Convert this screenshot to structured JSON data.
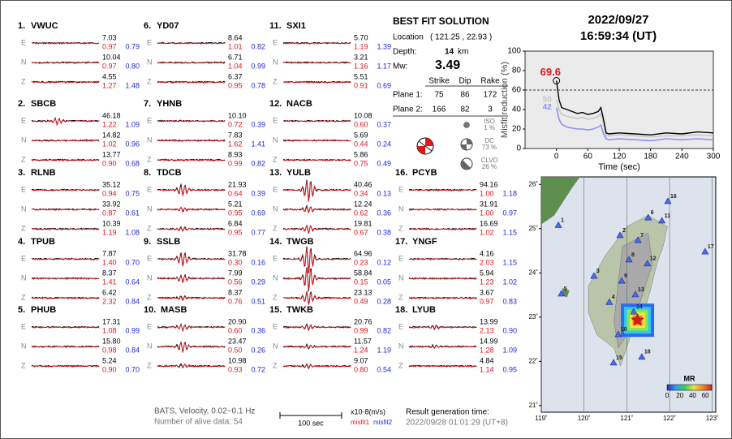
{
  "header": {
    "date": "2022/09/27",
    "time": "16:59:34  (UT)"
  },
  "components": [
    "E",
    "N",
    "Z"
  ],
  "stations": [
    {
      "id": "1.",
      "name": "VWUC",
      "rows": [
        [
          "7.03",
          "0.97",
          "0.79"
        ],
        [
          "10.04",
          "0.97",
          "0.80"
        ],
        [
          "4.55",
          "1.27",
          "1.48"
        ]
      ]
    },
    {
      "id": "2.",
      "name": "SBCB",
      "rows": [
        [
          "46.18",
          "1.22",
          "1.09"
        ],
        [
          "14.82",
          "1.02",
          "0.96"
        ],
        [
          "13.77",
          "0.90",
          "0.68"
        ]
      ]
    },
    {
      "id": "3.",
      "name": "RLNB",
      "rows": [
        [
          "35.12",
          "0.94",
          "0.75"
        ],
        [
          "33.92",
          "0.87",
          "0.61"
        ],
        [
          "10.39",
          "1.19",
          "1.08"
        ]
      ]
    },
    {
      "id": "4.",
      "name": "TPUB",
      "rows": [
        [
          "7.87",
          "1.40",
          "0.70"
        ],
        [
          "8.37",
          "1.41",
          "0.64"
        ],
        [
          "6.42",
          "2.32",
          "0.84"
        ]
      ]
    },
    {
      "id": "5.",
      "name": "PHUB",
      "rows": [
        [
          "17.31",
          "1.08",
          "0.99"
        ],
        [
          "15.80",
          "0.98",
          "0.84"
        ],
        [
          "5.24",
          "0.90",
          "0.70"
        ]
      ]
    },
    {
      "id": "6.",
      "name": "YD07",
      "rows": [
        [
          "8.64",
          "1.01",
          "0.82"
        ],
        [
          "6.71",
          "1.04",
          "0.99"
        ],
        [
          "6.37",
          "0.95",
          "0.78"
        ]
      ]
    },
    {
      "id": "7.",
      "name": "YHNB",
      "rows": [
        [
          "10.10",
          "0.72",
          "0.39"
        ],
        [
          "7.83",
          "1.62",
          "1.41"
        ],
        [
          "8.93",
          "0.99",
          "0.82"
        ]
      ]
    },
    {
      "id": "8.",
      "name": "TDCB",
      "rows": [
        [
          "21.93",
          "0.64",
          "0.39"
        ],
        [
          "5.21",
          "0.95",
          "0.69"
        ],
        [
          "6.84",
          "0.95",
          "0.77"
        ]
      ]
    },
    {
      "id": "9.",
      "name": "SSLB",
      "rows": [
        [
          "31.78",
          "0.30",
          "0.16"
        ],
        [
          "7.99",
          "0.56",
          "0.29"
        ],
        [
          "8.37",
          "0.76",
          "0.51"
        ]
      ]
    },
    {
      "id": "10.",
      "name": "MASB",
      "rows": [
        [
          "20.90",
          "0.60",
          "0.36"
        ],
        [
          "23.47",
          "0.50",
          "0.26"
        ],
        [
          "10.98",
          "0.93",
          "0.72"
        ]
      ]
    },
    {
      "id": "11.",
      "name": "SXI1",
      "rows": [
        [
          "5.70",
          "1.19",
          "1.39"
        ],
        [
          "3.21",
          "1.16",
          "1.17"
        ],
        [
          "5.51",
          "0.91",
          "0.69"
        ]
      ]
    },
    {
      "id": "12.",
      "name": "NACB",
      "rows": [
        [
          "10.08",
          "0.60",
          "0.37"
        ],
        [
          "5.69",
          "0.44",
          "0.24"
        ],
        [
          "5.86",
          "0.75",
          "0.49"
        ]
      ]
    },
    {
      "id": "13.",
      "name": "YULB",
      "rows": [
        [
          "40.46",
          "0.34",
          "0.13"
        ],
        [
          "12.24",
          "0.62",
          "0.36"
        ],
        [
          "19.81",
          "0.67",
          "0.38"
        ]
      ]
    },
    {
      "id": "14.",
      "name": "TWGB",
      "rows": [
        [
          "64.96",
          "0.23",
          "0.12"
        ],
        [
          "58.84",
          "0.15",
          "0.05"
        ],
        [
          "23.13",
          "0.49",
          "0.28"
        ]
      ]
    },
    {
      "id": "15.",
      "name": "TWKB",
      "rows": [
        [
          "20.76",
          "0.99",
          "0.82"
        ],
        [
          "11.57",
          "1.24",
          "1.19"
        ],
        [
          "9.07",
          "0.80",
          "0.54"
        ]
      ]
    },
    {
      "id": "16.",
      "name": "PCYB",
      "rows": [
        [
          "94.16",
          "1.00",
          "1.18"
        ],
        [
          "31.91",
          "1.00",
          "0.97"
        ],
        [
          "16.69",
          "1.02",
          "1.15"
        ]
      ]
    },
    {
      "id": "17.",
      "name": "YNGF",
      "rows": [
        [
          "4.16",
          "2.03",
          "1.15"
        ],
        [
          "5.94",
          "1.23",
          "1.02"
        ],
        [
          "3.67",
          "0.97",
          "0.83"
        ]
      ]
    },
    {
      "id": "18.",
      "name": "LYUB",
      "rows": [
        [
          "13.99",
          "2.13",
          "0.90"
        ],
        [
          "14.99",
          "1.28",
          "1.09"
        ],
        [
          "4.84",
          "1.14",
          "0.95"
        ]
      ]
    }
  ],
  "solution": {
    "title": "BEST FIT SOLUTION",
    "location_label": "Location",
    "location": "( 121.25 , 22.93 )",
    "depth_label": "Depth:",
    "depth": "14",
    "depth_unit": "km",
    "mw_label": "Mw:",
    "mw": "3.49",
    "columns": [
      "Strike",
      "Dip",
      "Rake"
    ],
    "planes": [
      {
        "label": "Plane 1:",
        "values": [
          "75",
          "86",
          "172"
        ]
      },
      {
        "label": "Plane 2:",
        "values": [
          "166",
          "82",
          "3"
        ]
      }
    ],
    "parts": [
      {
        "label": "ISO",
        "value": "1 %"
      },
      {
        "label": "DC",
        "value": "73 %"
      },
      {
        "label": "CLVD",
        "value": "26 %"
      }
    ]
  },
  "chart_data": {
    "type": "line",
    "ylabel": "Misfit reduction (%)",
    "xlabel": "Time (sec)",
    "x": [
      0,
      5,
      10,
      20,
      30,
      40,
      50,
      60,
      70,
      80,
      85,
      90,
      95,
      100,
      120,
      150,
      180,
      210,
      240,
      270,
      300
    ],
    "series": [
      {
        "color": "#c8c8c8",
        "values": [
          50,
          40,
          35,
          33,
          32,
          31,
          32,
          30,
          31,
          33,
          36,
          25,
          13,
          13,
          14,
          13,
          12,
          13,
          13,
          14,
          13
        ]
      },
      {
        "color": "#8f8ff5",
        "values": [
          42,
          30,
          25,
          22,
          21,
          20,
          20,
          19,
          20,
          22,
          24,
          15,
          10,
          9,
          10,
          9,
          8,
          10,
          9,
          10,
          9
        ]
      },
      {
        "color": "#000000",
        "values": [
          69.6,
          50,
          42,
          40,
          38,
          36,
          37,
          35,
          36,
          38,
          42,
          30,
          16,
          15,
          16,
          15,
          14,
          16,
          15,
          17,
          16
        ]
      }
    ],
    "annotations": [
      {
        "text": "50",
        "series": 0
      },
      {
        "text": "42",
        "series": 1
      },
      {
        "text": "69.6",
        "series": 2
      }
    ],
    "hline": 60,
    "xlim": [
      -60,
      300
    ],
    "ylim": [
      0,
      100
    ],
    "xticks": [
      0,
      60,
      120,
      180,
      240,
      300
    ],
    "yticks": [
      0,
      20,
      40,
      60,
      80,
      100
    ]
  },
  "map": {
    "lonlim": [
      119,
      123.08
    ],
    "latlim": [
      20.85,
      26.17
    ],
    "lonticks": [
      {
        "value": 119,
        "label": "119˚"
      },
      {
        "value": 120,
        "label": "120˚"
      },
      {
        "value": 121,
        "label": "121˚"
      },
      {
        "value": 122,
        "label": "122˚"
      },
      {
        "value": 123,
        "label": "123˚"
      }
    ],
    "latticks": [
      {
        "value": 21,
        "label": "21˚"
      },
      {
        "value": 22,
        "label": "22˚"
      },
      {
        "value": 23,
        "label": "23˚"
      },
      {
        "value": 24,
        "label": "24˚"
      },
      {
        "value": 25,
        "label": "25˚"
      },
      {
        "value": 26,
        "label": "26˚"
      }
    ],
    "epicenter": {
      "lon": 121.25,
      "lat": 22.93
    },
    "stations": [
      {
        "label": "1",
        "lon": 119.4,
        "lat": 25.08
      },
      {
        "label": "2",
        "lon": 120.84,
        "lat": 24.85
      },
      {
        "label": "3",
        "lon": 120.23,
        "lat": 23.93
      },
      {
        "label": "4",
        "lon": 120.59,
        "lat": 23.34
      },
      {
        "label": "5",
        "lon": 119.47,
        "lat": 23.53
      },
      {
        "label": "6",
        "lon": 121.5,
        "lat": 25.25
      },
      {
        "label": "7",
        "lon": 121.26,
        "lat": 24.74
      },
      {
        "label": "8",
        "lon": 121.05,
        "lat": 24.3
      },
      {
        "label": "9",
        "lon": 120.88,
        "lat": 23.82
      },
      {
        "label": "10",
        "lon": 120.8,
        "lat": 22.61
      },
      {
        "label": "11",
        "lon": 121.82,
        "lat": 25.18
      },
      {
        "label": "12",
        "lon": 121.48,
        "lat": 24.21
      },
      {
        "label": "13",
        "lon": 121.2,
        "lat": 23.51
      },
      {
        "label": "14",
        "lon": 121.16,
        "lat": 23.12
      },
      {
        "label": "15",
        "lon": 120.69,
        "lat": 21.97
      },
      {
        "label": "16",
        "lon": 121.96,
        "lat": 25.62
      },
      {
        "label": "17",
        "lon": 122.83,
        "lat": 24.48
      },
      {
        "label": "18",
        "lon": 121.35,
        "lat": 22.1
      }
    ],
    "colorbar_title": "MR",
    "colorbar_ticks": [
      0,
      20,
      40,
      60
    ],
    "colorbar_lim": [
      0,
      70
    ]
  },
  "footer": {
    "source": "BATS, Velocity, 0.02~0.1 Hz",
    "alive": "Number of alive data: 54",
    "scale": "100 sec",
    "unit": "x10-8(m/s)",
    "misfit1": "misfit1",
    "misfit2": "misfit2",
    "result_label": "Result generation time:",
    "result_time": "2022/09/28 01:01:29 (UT+8)"
  }
}
